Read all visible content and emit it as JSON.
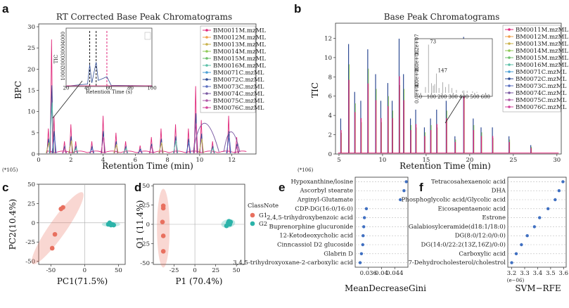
{
  "panel_labels": [
    "a",
    "b",
    "c",
    "d",
    "e",
    "f"
  ],
  "colors": {
    "pink": "#e0287a",
    "dark_blue": "#2d4a93",
    "green": "#8fc955",
    "purple": "#7b5aa3",
    "blue": "#4a9fd4",
    "G1": "#e8705f",
    "G2": "#2bb3a9",
    "dot": "#3f6fc1"
  },
  "chart_data": [
    {
      "id": "a",
      "type": "line",
      "title": "RT Corrected Base Peak Chromatograms",
      "xlabel": "Retention Time (min)",
      "ylabel": "BPC",
      "y_scale_note": "(*105)",
      "xlim": [
        0,
        13.5
      ],
      "ylim": [
        0,
        30
      ],
      "xticks": [
        0,
        2,
        4,
        6,
        8,
        10,
        12
      ],
      "yticks": [
        0,
        5,
        10,
        15,
        20,
        25,
        30
      ],
      "legend_position": "top-right",
      "series": [
        {
          "name": "BM0011M.mzML",
          "color": "#e0287a",
          "marker": "circle"
        },
        {
          "name": "BM0012M.mzML",
          "color": "#f0a04a",
          "marker": "triangle"
        },
        {
          "name": "BM0013M.mzML",
          "color": "#c9b24a",
          "marker": "plus"
        },
        {
          "name": "BM0014M.mzML",
          "color": "#8fc955",
          "marker": "cross"
        },
        {
          "name": "BM0015M.mzML",
          "color": "#6cbf6a",
          "marker": "diamond"
        },
        {
          "name": "BM0016M.mzML",
          "color": "#5cc0a8",
          "marker": "triangle-down"
        },
        {
          "name": "BM0071C.mzML",
          "color": "#4a9fd4",
          "marker": "circle"
        },
        {
          "name": "BM0072C.mzML",
          "color": "#2d4a93",
          "marker": "star"
        },
        {
          "name": "BM0073C.mzML",
          "color": "#5a6fc0",
          "marker": "diamond"
        },
        {
          "name": "BM0074C.mzML",
          "color": "#7b5aa3",
          "marker": "triangle"
        },
        {
          "name": "BM0075C.mzML",
          "color": "#b05aa8",
          "marker": "square"
        },
        {
          "name": "BM0076C.mzML",
          "color": "#d2449a",
          "marker": "square"
        }
      ],
      "peaks": [
        {
          "x": 0.6,
          "y": 6
        },
        {
          "x": 0.8,
          "y": 27
        },
        {
          "x": 0.95,
          "y": 9
        },
        {
          "x": 1.6,
          "y": 3
        },
        {
          "x": 2.0,
          "y": 7
        },
        {
          "x": 2.3,
          "y": 3
        },
        {
          "x": 3.3,
          "y": 3
        },
        {
          "x": 4.0,
          "y": 9
        },
        {
          "x": 4.8,
          "y": 5
        },
        {
          "x": 5.4,
          "y": 3
        },
        {
          "x": 6.3,
          "y": 2
        },
        {
          "x": 7.0,
          "y": 4
        },
        {
          "x": 7.6,
          "y": 6
        },
        {
          "x": 8.5,
          "y": 7
        },
        {
          "x": 9.3,
          "y": 6
        },
        {
          "x": 9.75,
          "y": 16
        },
        {
          "x": 10.1,
          "y": 8
        },
        {
          "x": 10.8,
          "y": 3
        },
        {
          "x": 11.8,
          "y": 9
        },
        {
          "x": 12.3,
          "y": 4
        }
      ],
      "inset": {
        "xlabel": "Retention Time (s)",
        "ylabel": "TIC",
        "xticks": [
          20,
          40,
          60,
          80,
          100
        ],
        "yticks": [
          1000,
          2000,
          3000,
          4000
        ],
        "xlim": [
          20,
          100
        ],
        "ylim": [
          0,
          4800
        ],
        "marker_lines_x": [
          42,
          48,
          58
        ]
      }
    },
    {
      "id": "b",
      "type": "line",
      "title": "Base Peak Chromatograms",
      "xlabel": "Retention Time (min)",
      "ylabel": "TIC",
      "y_scale_note": "(*106)",
      "xlim": [
        4.6,
        30.5
      ],
      "ylim": [
        0,
        13.2
      ],
      "xticks": [
        5,
        10,
        15,
        20,
        25,
        30
      ],
      "yticks": [
        0,
        2,
        4,
        6,
        8,
        10,
        12
      ],
      "legend_position": "top-right",
      "series_names": [
        "BM0011M.mzML",
        "BM0012M.mzML",
        "BM0013M.mzML",
        "BM0014M.mzML",
        "BM0015M.mzML",
        "BM0016M.mzML",
        "BM0071C.mzML",
        "BM0072C.mzML",
        "BM0073C.mzML",
        "BM0074C.mzML",
        "BM0075C.mzML",
        "BM0076C.mzML"
      ],
      "peaks": [
        {
          "x": 5.2,
          "y": 4
        },
        {
          "x": 6.1,
          "y": 12.4
        },
        {
          "x": 6.8,
          "y": 7
        },
        {
          "x": 7.5,
          "y": 6
        },
        {
          "x": 8.3,
          "y": 11.8
        },
        {
          "x": 9.2,
          "y": 9
        },
        {
          "x": 9.8,
          "y": 6
        },
        {
          "x": 10.6,
          "y": 8
        },
        {
          "x": 11.1,
          "y": 6
        },
        {
          "x": 11.9,
          "y": 13
        },
        {
          "x": 12.4,
          "y": 9
        },
        {
          "x": 13.2,
          "y": 4
        },
        {
          "x": 13.8,
          "y": 5
        },
        {
          "x": 14.8,
          "y": 3
        },
        {
          "x": 15.5,
          "y": 4
        },
        {
          "x": 16.2,
          "y": 5
        },
        {
          "x": 17.3,
          "y": 6
        },
        {
          "x": 18.3,
          "y": 2
        },
        {
          "x": 19.3,
          "y": 13.2
        },
        {
          "x": 20.4,
          "y": 4
        },
        {
          "x": 21.3,
          "y": 3
        },
        {
          "x": 22.6,
          "y": 3
        },
        {
          "x": 24.5,
          "y": 2
        },
        {
          "x": 27.0,
          "y": 1
        }
      ],
      "inset": {
        "xticks": [
          0,
          100,
          200,
          300,
          400,
          500,
          600
        ],
        "xlim": [
          0,
          650
        ],
        "ytick_labels": [
          "0.0e+00",
          "4.0e+06",
          "8.0e+06",
          "1.2e+07"
        ],
        "annotations": [
          {
            "text": "73",
            "x": 73
          },
          {
            "text": "147",
            "x": 147
          }
        ],
        "bars": [
          {
            "x": 73,
            "y": 1.0
          },
          {
            "x": 45,
            "y": 0.12
          },
          {
            "x": 100,
            "y": 0.2
          },
          {
            "x": 117,
            "y": 0.15
          },
          {
            "x": 130,
            "y": 0.18
          },
          {
            "x": 147,
            "y": 0.4
          },
          {
            "x": 170,
            "y": 0.1
          },
          {
            "x": 205,
            "y": 0.22
          },
          {
            "x": 231,
            "y": 0.12
          },
          {
            "x": 260,
            "y": 0.18
          },
          {
            "x": 290,
            "y": 0.1
          },
          {
            "x": 331,
            "y": 0.06
          },
          {
            "x": 387,
            "y": 0.04
          },
          {
            "x": 400,
            "y": 0.05
          },
          {
            "x": 430,
            "y": 0.04
          },
          {
            "x": 480,
            "y": 0.03
          },
          {
            "x": 520,
            "y": 0.02
          }
        ]
      }
    },
    {
      "id": "c",
      "type": "scatter",
      "xlabel": "PC1(71.5%)",
      "ylabel": "PC2(10.4%)",
      "xlim": [
        -68,
        60
      ],
      "ylim": [
        -54,
        50
      ],
      "xticks": [
        -50,
        0,
        50
      ],
      "yticks": [
        -50,
        -25,
        0,
        25,
        50
      ],
      "series": [
        {
          "name": "G1",
          "points": [
            [
              -32,
              20
            ],
            [
              -35,
              18
            ],
            [
              -44,
              -15
            ],
            [
              -48,
              -33
            ]
          ]
        },
        {
          "name": "G2",
          "points": [
            [
              35,
              -2
            ],
            [
              37,
              0
            ],
            [
              39,
              -3
            ],
            [
              41,
              -2
            ],
            [
              43,
              -3
            ]
          ]
        }
      ]
    },
    {
      "id": "d",
      "type": "scatter",
      "xlabel": "P1 (70.4%)",
      "ylabel": "O1 (11.4%)",
      "xlim": [
        -50,
        60
      ],
      "ylim": [
        -52,
        52
      ],
      "xticks": [
        -25,
        0,
        25,
        50
      ],
      "yticks": [
        -50,
        -25,
        0,
        25,
        50
      ],
      "legend_title": "ClassNote",
      "legend_position": "right",
      "series": [
        {
          "name": "G1",
          "points": [
            [
              -38,
              24
            ],
            [
              -38,
              21
            ],
            [
              -39,
              3
            ],
            [
              -38,
              -15
            ],
            [
              -38,
              -35
            ]
          ]
        },
        {
          "name": "G2",
          "points": [
            [
              38,
              -2
            ],
            [
              40,
              2
            ],
            [
              41,
              4
            ],
            [
              42,
              0
            ],
            [
              43,
              3
            ]
          ]
        }
      ]
    },
    {
      "id": "e",
      "type": "scatter",
      "xlabel": "MeanDecreaseGini",
      "xlim": [
        0.032,
        0.048
      ],
      "xticks": [
        0.036,
        0.04,
        0.044
      ],
      "categories": [
        "Hypoxanthine/losine",
        "Ascorbyl stearate",
        "Arginyl-Glutamate",
        "CDP-DG(16:0/16:0)",
        "2,4,5-trihydroxybenzoic acid",
        "Buprenorphine glucuronide",
        "12-Ketodeoxycholic acid",
        "Cinncassiol D2 glucoside",
        "Glabrin D",
        "3,4,5-trihydroxyoxane-2-carboxylic acid"
      ],
      "values": [
        0.0475,
        0.0468,
        0.0457,
        0.0354,
        0.0348,
        0.0346,
        0.0344,
        0.0343,
        0.0339,
        0.0335
      ]
    },
    {
      "id": "f",
      "type": "scatter",
      "xlabel": "SVM−RFE",
      "x_scale_note": "(e−06)",
      "xlim": [
        3.17,
        3.62
      ],
      "xticks": [
        3.2,
        3.3,
        3.4,
        3.5,
        3.6
      ],
      "categories": [
        "Tetracosahexaenoic acid",
        "DHA",
        "Phosphoglycolic acid/Glycolic acid",
        "Eicosapentaenoic acid",
        "Estrone",
        "Galabiosylceramide(d18:1/18:0)",
        "DG(8:0/12:0/0:0)",
        "DG(14:0/22:2(13Z,16Z)/0:0)",
        "Carboxylic acid",
        "7-Dehydrocholesterol/cholestrol"
      ],
      "values": [
        3.595,
        3.565,
        3.535,
        3.48,
        3.415,
        3.375,
        3.32,
        3.275,
        3.235,
        3.2
      ]
    }
  ]
}
